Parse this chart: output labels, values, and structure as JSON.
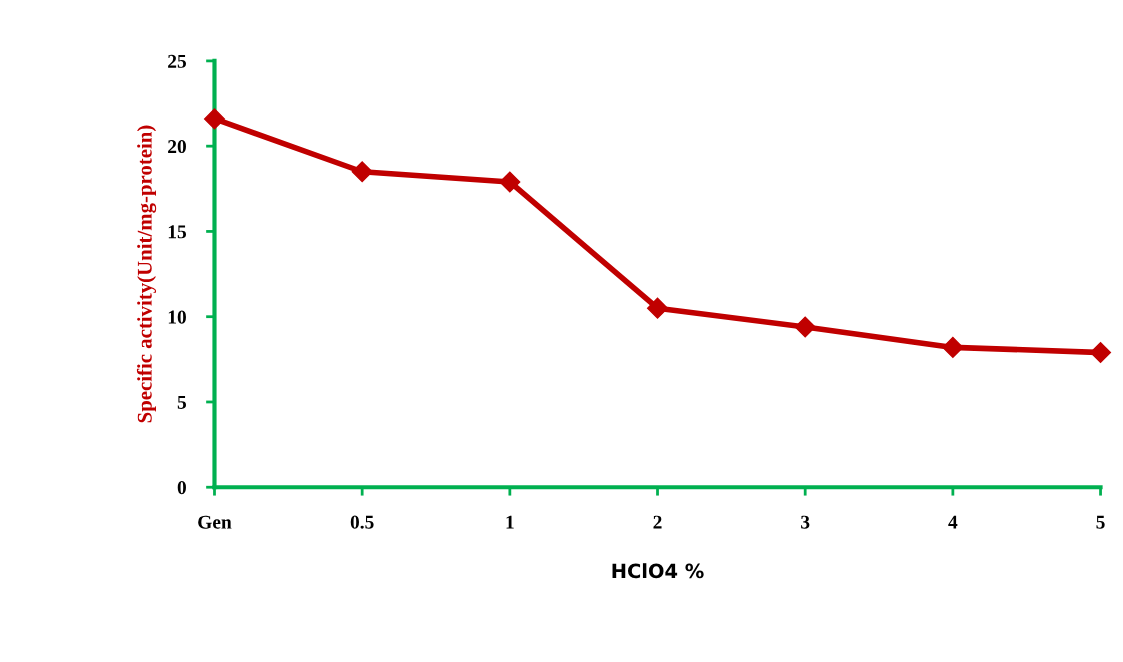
{
  "chart_data": {
    "type": "line",
    "xlabel": "HClO4 %",
    "ylabel": "Specific activity(Unit/mg-protein)",
    "categories": [
      "Gen",
      "0.5",
      "1",
      "2",
      "3",
      "4",
      "5"
    ],
    "series": [
      {
        "color": "#c00000",
        "values": [
          21.6,
          18.5,
          17.9,
          10.5,
          9.4,
          8.2,
          7.9
        ]
      }
    ],
    "ylim": [
      0,
      25
    ],
    "yticks": [
      0,
      5,
      10,
      15,
      20,
      25
    ],
    "grid": false,
    "legend": false,
    "marker": "diamond",
    "line_style": "solid"
  }
}
